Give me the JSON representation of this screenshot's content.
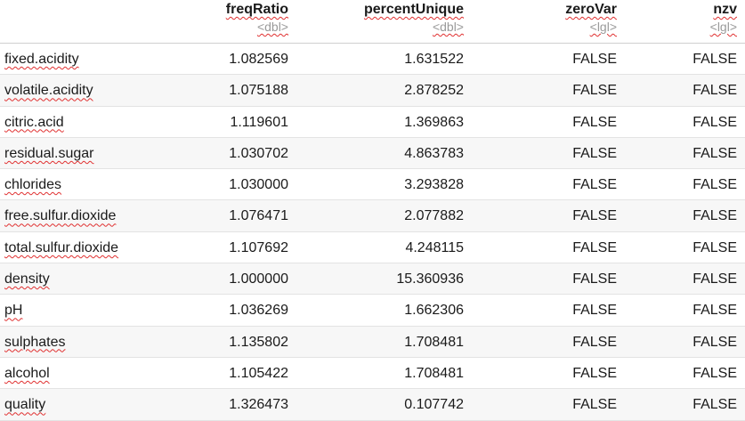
{
  "columns": [
    {
      "name": "freqRatio",
      "type": "<dbl>"
    },
    {
      "name": "percentUnique",
      "type": "<dbl>"
    },
    {
      "name": "zeroVar",
      "type": "<lgl>"
    },
    {
      "name": "nzv",
      "type": "<lgl>"
    }
  ],
  "rows": [
    {
      "name": "fixed.acidity",
      "freqRatio": "1.082569",
      "percentUnique": "1.631522",
      "zeroVar": "FALSE",
      "nzv": "FALSE"
    },
    {
      "name": "volatile.acidity",
      "freqRatio": "1.075188",
      "percentUnique": "2.878252",
      "zeroVar": "FALSE",
      "nzv": "FALSE"
    },
    {
      "name": "citric.acid",
      "freqRatio": "1.119601",
      "percentUnique": "1.369863",
      "zeroVar": "FALSE",
      "nzv": "FALSE"
    },
    {
      "name": "residual.sugar",
      "freqRatio": "1.030702",
      "percentUnique": "4.863783",
      "zeroVar": "FALSE",
      "nzv": "FALSE"
    },
    {
      "name": "chlorides",
      "freqRatio": "1.030000",
      "percentUnique": "3.293828",
      "zeroVar": "FALSE",
      "nzv": "FALSE"
    },
    {
      "name": "free.sulfur.dioxide",
      "freqRatio": "1.076471",
      "percentUnique": "2.077882",
      "zeroVar": "FALSE",
      "nzv": "FALSE"
    },
    {
      "name": "total.sulfur.dioxide",
      "freqRatio": "1.107692",
      "percentUnique": "4.248115",
      "zeroVar": "FALSE",
      "nzv": "FALSE"
    },
    {
      "name": "density",
      "freqRatio": "1.000000",
      "percentUnique": "15.360936",
      "zeroVar": "FALSE",
      "nzv": "FALSE"
    },
    {
      "name": "pH",
      "freqRatio": "1.036269",
      "percentUnique": "1.662306",
      "zeroVar": "FALSE",
      "nzv": "FALSE"
    },
    {
      "name": "sulphates",
      "freqRatio": "1.135802",
      "percentUnique": "1.708481",
      "zeroVar": "FALSE",
      "nzv": "FALSE"
    },
    {
      "name": "alcohol",
      "freqRatio": "1.105422",
      "percentUnique": "1.708481",
      "zeroVar": "FALSE",
      "nzv": "FALSE"
    },
    {
      "name": "quality",
      "freqRatio": "1.326473",
      "percentUnique": "0.107742",
      "zeroVar": "FALSE",
      "nzv": "FALSE"
    }
  ]
}
